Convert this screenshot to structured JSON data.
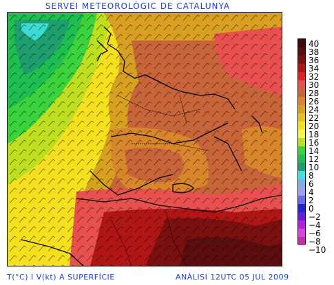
{
  "header": {
    "title": "SERVEI METEOROLÒGIC DE CATALUNYA"
  },
  "footer": {
    "left": "T(°C) I V(kt) A SUPERFÍCIE",
    "right": "ANÀLISI 12UTC 05 JUL 2009"
  },
  "legend": {
    "unit": "°C",
    "entries": [
      {
        "label": "40",
        "color": "#3d0a0a"
      },
      {
        "label": "38",
        "color": "#5a0e0e"
      },
      {
        "label": "36",
        "color": "#7a1010"
      },
      {
        "label": "34",
        "color": "#b01616"
      },
      {
        "label": "32",
        "color": "#e02222"
      },
      {
        "label": "30",
        "color": "#e85050"
      },
      {
        "label": "28",
        "color": "#c8643a"
      },
      {
        "label": "26",
        "color": "#d7862c"
      },
      {
        "label": "24",
        "color": "#d8a020"
      },
      {
        "label": "22",
        "color": "#e8c020"
      },
      {
        "label": "20",
        "color": "#f5e01e"
      },
      {
        "label": "18",
        "color": "#f7f44a"
      },
      {
        "label": "16",
        "color": "#bede20"
      },
      {
        "label": "14",
        "color": "#3cd23c"
      },
      {
        "label": "12",
        "color": "#1ebe50"
      },
      {
        "label": "10",
        "color": "#1e9e6e"
      },
      {
        "label": "8",
        "color": "#40e0e0"
      },
      {
        "label": "6",
        "color": "#7ab0e6"
      },
      {
        "label": "4",
        "color": "#a0a0f0"
      },
      {
        "label": "2",
        "color": "#6a6aea"
      },
      {
        "label": "0",
        "color": "#2222e0"
      },
      {
        "label": "−2",
        "color": "#6a18e0"
      },
      {
        "label": "−4",
        "color": "#b020e0"
      },
      {
        "label": "−6",
        "color": "#e040e0"
      },
      {
        "label": "−8",
        "color": "#c030a0"
      },
      {
        "label": "−10",
        "color": "#6a1a6a"
      }
    ]
  }
}
